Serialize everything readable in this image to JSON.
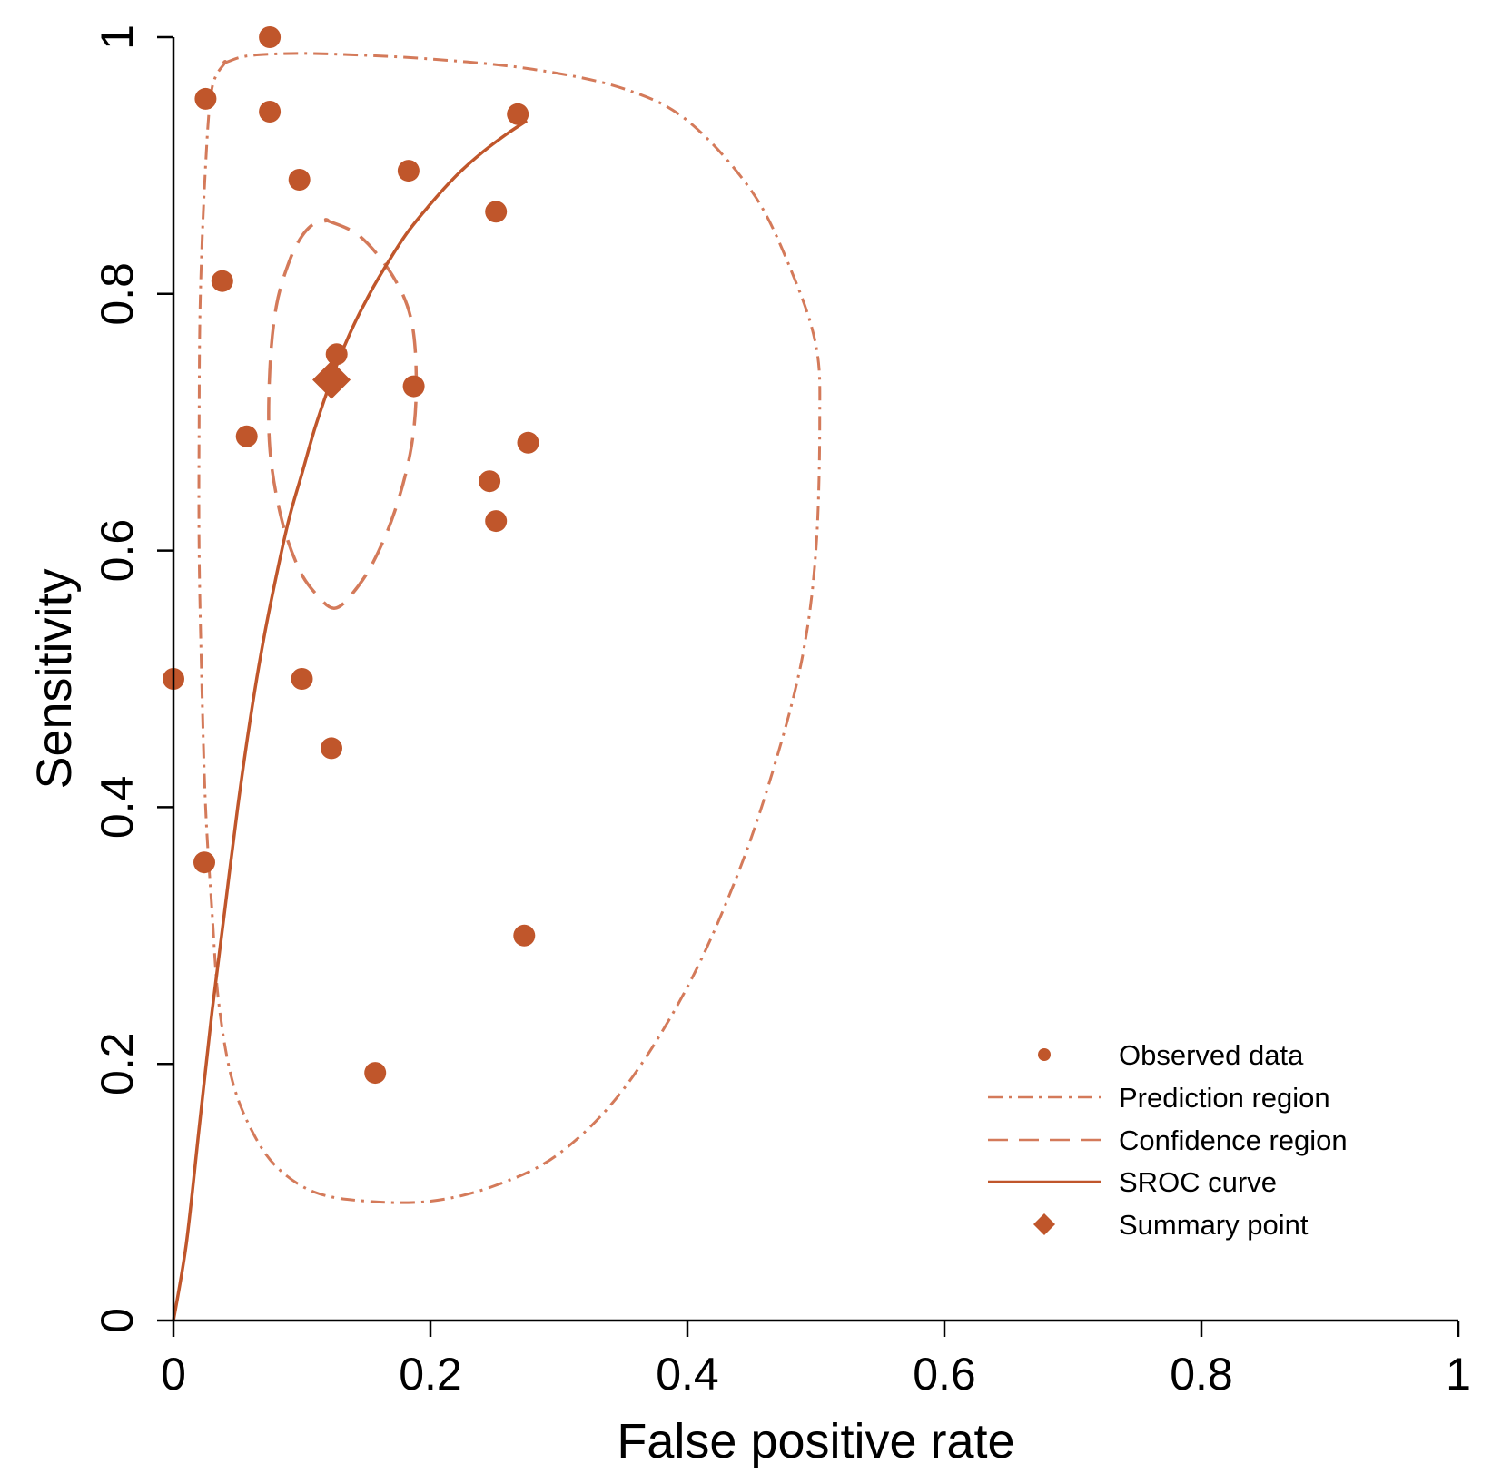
{
  "colors": {
    "accent": "#C0562B",
    "light": "#D47A5A",
    "axis": "#000000",
    "background": "#FFFFFF"
  },
  "chart_data": {
    "type": "scatter",
    "title": "",
    "xlabel": "False positive rate",
    "ylabel": "Sensitivity",
    "xlim": [
      0,
      1
    ],
    "ylim": [
      0,
      1
    ],
    "xticks": [
      0,
      0.2,
      0.4,
      0.6,
      0.8,
      1
    ],
    "yticks": [
      0,
      0.2,
      0.4,
      0.6,
      0.8,
      1
    ],
    "xtick_labels": [
      "0",
      "0.2",
      "0.4",
      "0.6",
      "0.8",
      "1"
    ],
    "ytick_labels": [
      "0",
      "0.2",
      "0.4",
      "0.6",
      "0.8",
      "1"
    ],
    "grid": false,
    "legend_position": "bottom-right",
    "observed_data": {
      "name": "Observed data",
      "points": [
        {
          "x": 0.075,
          "y": 1.0
        },
        {
          "x": 0.025,
          "y": 0.952
        },
        {
          "x": 0.075,
          "y": 0.942
        },
        {
          "x": 0.268,
          "y": 0.94
        },
        {
          "x": 0.098,
          "y": 0.889
        },
        {
          "x": 0.183,
          "y": 0.896
        },
        {
          "x": 0.251,
          "y": 0.864
        },
        {
          "x": 0.038,
          "y": 0.81
        },
        {
          "x": 0.127,
          "y": 0.753
        },
        {
          "x": 0.187,
          "y": 0.728
        },
        {
          "x": 0.057,
          "y": 0.689
        },
        {
          "x": 0.276,
          "y": 0.684
        },
        {
          "x": 0.246,
          "y": 0.654
        },
        {
          "x": 0.251,
          "y": 0.623
        },
        {
          "x": 0.0,
          "y": 0.5
        },
        {
          "x": 0.1,
          "y": 0.5
        },
        {
          "x": 0.123,
          "y": 0.446
        },
        {
          "x": 0.024,
          "y": 0.357
        },
        {
          "x": 0.273,
          "y": 0.3
        },
        {
          "x": 0.157,
          "y": 0.193
        }
      ]
    },
    "summary_point": {
      "name": "Summary point",
      "x": 0.123,
      "y": 0.733
    },
    "sroc_curve": {
      "name": "SROC curve",
      "x": [
        0.0,
        0.01,
        0.02,
        0.03,
        0.04,
        0.05,
        0.06,
        0.07,
        0.08,
        0.09,
        0.1,
        0.11,
        0.12,
        0.13,
        0.14,
        0.15,
        0.16,
        0.18,
        0.2,
        0.22,
        0.24,
        0.26,
        0.275
      ],
      "y": [
        0.0,
        0.06,
        0.15,
        0.24,
        0.32,
        0.4,
        0.47,
        0.53,
        0.58,
        0.625,
        0.66,
        0.695,
        0.725,
        0.752,
        0.775,
        0.795,
        0.813,
        0.845,
        0.87,
        0.892,
        0.91,
        0.925,
        0.935
      ]
    },
    "confidence_region": {
      "name": "Confidence region",
      "x": [
        0.12,
        0.145,
        0.17,
        0.185,
        0.189,
        0.185,
        0.172,
        0.155,
        0.138,
        0.125,
        0.112,
        0.098,
        0.084,
        0.075,
        0.075,
        0.08,
        0.09,
        0.1,
        0.11,
        0.12
      ],
      "y": [
        0.857,
        0.845,
        0.815,
        0.78,
        0.73,
        0.68,
        0.63,
        0.59,
        0.565,
        0.555,
        0.565,
        0.585,
        0.625,
        0.68,
        0.74,
        0.79,
        0.825,
        0.845,
        0.855,
        0.857
      ]
    },
    "prediction_region": {
      "name": "Prediction region",
      "x": [
        0.04,
        0.055,
        0.08,
        0.12,
        0.2,
        0.28,
        0.35,
        0.4,
        0.45,
        0.48,
        0.5,
        0.503,
        0.5,
        0.49,
        0.47,
        0.44,
        0.4,
        0.35,
        0.3,
        0.25,
        0.2,
        0.15,
        0.11,
        0.08,
        0.06,
        0.045,
        0.035,
        0.03,
        0.025,
        0.022,
        0.02,
        0.02,
        0.021,
        0.025,
        0.03,
        0.04
      ],
      "y": [
        0.98,
        0.985,
        0.987,
        0.987,
        0.983,
        0.975,
        0.96,
        0.935,
        0.88,
        0.82,
        0.76,
        0.7,
        0.6,
        0.52,
        0.44,
        0.35,
        0.26,
        0.18,
        0.13,
        0.105,
        0.093,
        0.093,
        0.1,
        0.12,
        0.15,
        0.19,
        0.25,
        0.32,
        0.4,
        0.5,
        0.6,
        0.7,
        0.8,
        0.9,
        0.96,
        0.98
      ]
    },
    "legend": [
      {
        "label": "Observed data",
        "symbol": "dot"
      },
      {
        "label": "Prediction region",
        "symbol": "dotdash"
      },
      {
        "label": "Confidence region",
        "symbol": "dash"
      },
      {
        "label": "SROC curve",
        "symbol": "solid"
      },
      {
        "label": "Summary point",
        "symbol": "diamond"
      }
    ]
  }
}
